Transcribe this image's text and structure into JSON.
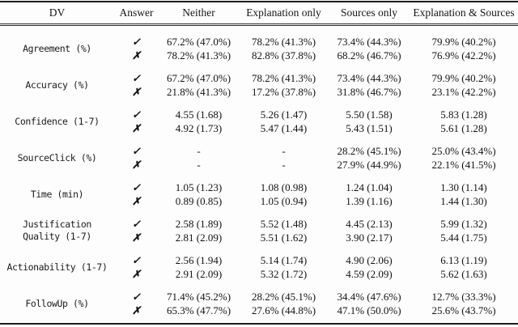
{
  "table": {
    "columns": [
      "DV",
      "Answer",
      "Neither",
      "Explanation only",
      "Sources only",
      "Explanation & Sources"
    ],
    "answer_icons": {
      "check": "✓",
      "cross": "✗"
    },
    "rows": [
      {
        "dv": "Agreement (%)",
        "lines": [
          {
            "answer": "✓",
            "values": [
              "67.2% (47.0%)",
              "78.2% (41.3%)",
              "73.4% (44.3%)",
              "79.9% (40.2%)"
            ]
          },
          {
            "answer": "✗",
            "values": [
              "78.2% (41.3%)",
              "82.8% (37.8%)",
              "68.2% (46.7%)",
              "76.9% (42.2%)"
            ]
          }
        ]
      },
      {
        "dv": "Accuracy (%)",
        "lines": [
          {
            "answer": "✓",
            "values": [
              "67.2% (47.0%)",
              "78.2% (41.3%)",
              "73.4% (44.3%)",
              "79.9% (40.2%)"
            ]
          },
          {
            "answer": "✗",
            "values": [
              "21.8% (41.3%)",
              "17.2% (37.8%)",
              "31.8% (46.7%)",
              "23.1% (42.2%)"
            ]
          }
        ]
      },
      {
        "dv": "Confidence (1-7)",
        "lines": [
          {
            "answer": "✓",
            "values": [
              "4.55 (1.68)",
              "5.26 (1.47)",
              "5.50 (1.58)",
              "5.83 (1.28)"
            ]
          },
          {
            "answer": "✗",
            "values": [
              "4.92 (1.73)",
              "5.47 (1.44)",
              "5.43 (1.51)",
              "5.61 (1.28)"
            ]
          }
        ]
      },
      {
        "dv": "SourceClick (%)",
        "lines": [
          {
            "answer": "✓",
            "values": [
              "-",
              "-",
              "28.2% (45.1%)",
              "25.0% (43.4%)"
            ]
          },
          {
            "answer": "✗",
            "values": [
              "-",
              "-",
              "27.9% (44.9%)",
              "22.1% (41.5%)"
            ]
          }
        ]
      },
      {
        "dv": "Time (min)",
        "lines": [
          {
            "answer": "✓",
            "values": [
              "1.05 (1.23)",
              "1.08 (0.98)",
              "1.24 (1.04)",
              "1.30 (1.14)"
            ]
          },
          {
            "answer": "✗",
            "values": [
              "0.89 (0.85)",
              "1.05 (0.94)",
              "1.39 (1.16)",
              "1.44 (1.30)"
            ]
          }
        ]
      },
      {
        "dv": "Justification\nQuality (1-7)",
        "lines": [
          {
            "answer": "✓",
            "values": [
              "2.58 (1.89)",
              "5.52 (1.48)",
              "4.45 (2.13)",
              "5.99 (1.32)"
            ]
          },
          {
            "answer": "✗",
            "values": [
              "2.81 (2.09)",
              "5.51 (1.62)",
              "3.90 (2.17)",
              "5.44 (1.75)"
            ]
          }
        ]
      },
      {
        "dv": "Actionability (1-7)",
        "lines": [
          {
            "answer": "✓",
            "values": [
              "2.56 (1.94)",
              "5.14 (1.74)",
              "4.90 (2.06)",
              "6.13 (1.19)"
            ]
          },
          {
            "answer": "✗",
            "values": [
              "2.91 (2.09)",
              "5.32 (1.72)",
              "4.59 (2.09)",
              "5.62 (1.63)"
            ]
          }
        ]
      },
      {
        "dv": "FollowUp (%)",
        "lines": [
          {
            "answer": "✓",
            "values": [
              "71.4% (45.2%)",
              "28.2% (45.1%)",
              "34.4% (47.6%)",
              "12.7% (33.3%)"
            ]
          },
          {
            "answer": "✗",
            "values": [
              "65.3% (47.7%)",
              "27.6% (44.8%)",
              "47.1% (50.0%)",
              "25.6% (43.7%)"
            ]
          }
        ]
      }
    ]
  }
}
